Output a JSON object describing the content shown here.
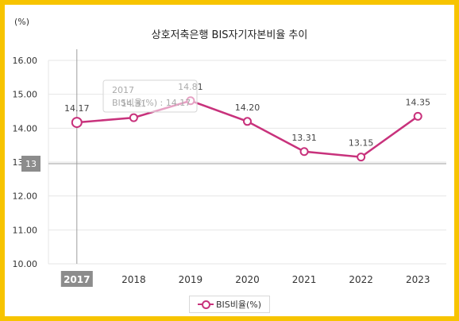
{
  "chart_data": {
    "type": "line",
    "title": "상호저축은행 BIS자기자본비율 추이",
    "unit_label": "(%)",
    "categories": [
      "2017",
      "2018",
      "2019",
      "2020",
      "2021",
      "2022",
      "2023"
    ],
    "series": [
      {
        "name": "BIS비율(%)",
        "values": [
          14.17,
          14.31,
          14.81,
          14.2,
          13.31,
          13.15,
          14.35
        ]
      }
    ],
    "data_labels": [
      "14.17",
      "14.31",
      "14.81",
      "14.20",
      "13.31",
      "13.15",
      "14.35"
    ],
    "y_ticks": [
      "16.00",
      "15.00",
      "14.00",
      "13.00",
      "12.00",
      "11.00",
      "10.00"
    ],
    "ylim": [
      10,
      16
    ],
    "grid": true,
    "legend_position": "bottom",
    "crosshair": {
      "x_category": "2017",
      "y_value": 13,
      "y_label": "13"
    },
    "tooltip": {
      "title": "2017",
      "text": "BIS비율(%) : 14.17"
    }
  },
  "colors": {
    "series": "#c8327c",
    "frame": "#f7c400",
    "grid": "#e6e6e6",
    "crosshair": "#9e9e9e"
  }
}
